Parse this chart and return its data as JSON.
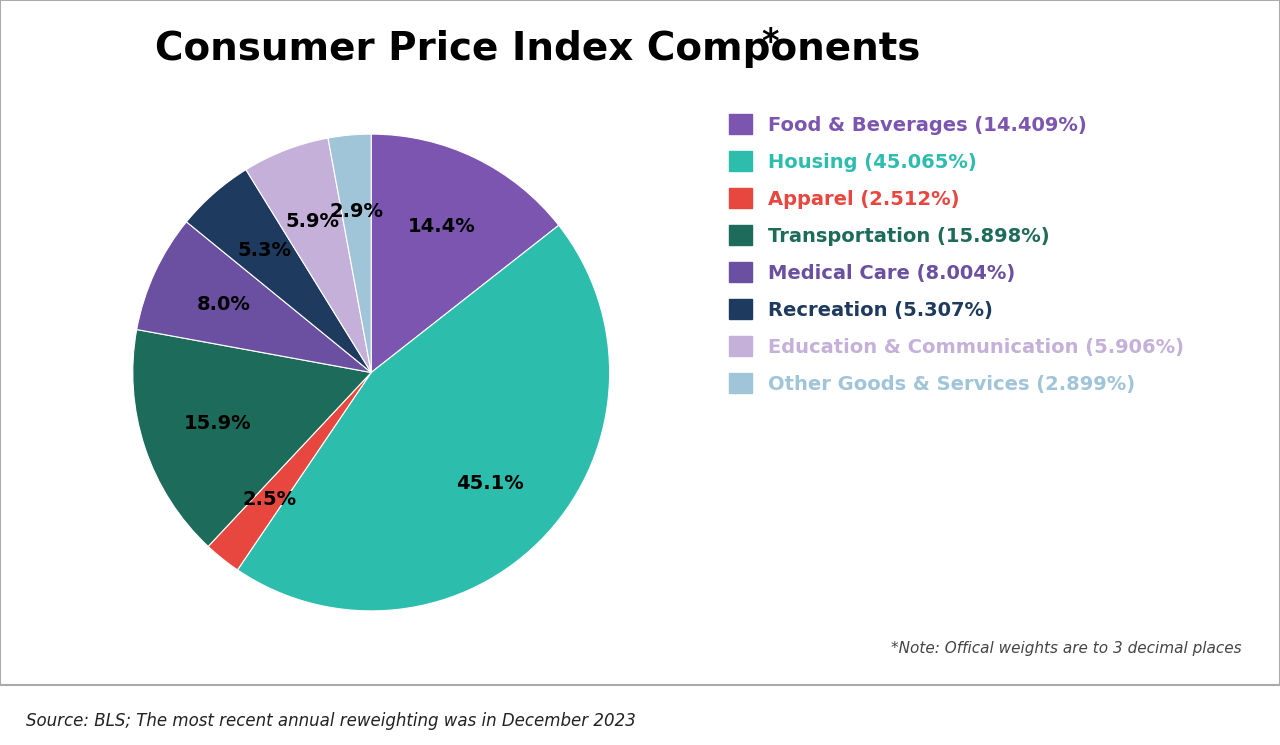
{
  "title": "Consumer Price Index Components",
  "title_star": "*",
  "labels": [
    "Food & Beverages",
    "Housing",
    "Apparel",
    "Transportation",
    "Medical Care",
    "Recreation",
    "Education & Communication",
    "Other Goods & Services"
  ],
  "values": [
    14.409,
    45.065,
    2.512,
    15.898,
    8.004,
    5.307,
    5.906,
    2.899
  ],
  "display_pcts": [
    "14.4%",
    "45.1%",
    "2.5%",
    "15.9%",
    "8.0%",
    "5.3%",
    "5.9%",
    "2.9%"
  ],
  "legend_labels": [
    "Food & Beverages (14.409%)",
    "Housing (45.065%)",
    "Apparel (2.512%)",
    "Transportation (15.898%)",
    "Medical Care (8.004%)",
    "Recreation (5.307%)",
    "Education & Communication (5.906%)",
    "Other Goods & Services (2.899%)"
  ],
  "colors": [
    "#7B55B0",
    "#2DBDAD",
    "#E8473F",
    "#1D6B5A",
    "#6B4FA0",
    "#1E3A5F",
    "#C4B0D8",
    "#A0C4D8"
  ],
  "legend_text_colors": [
    "#7B55B0",
    "#2DBDAD",
    "#E8473F",
    "#1D6B5A",
    "#6B4FA0",
    "#1E3A5F",
    "#C4B0D8",
    "#A0C4D8"
  ],
  "note_text": "*Note: Offical weights are to 3 decimal places",
  "source_text": "Source: BLS; The most recent annual reweighting was in December 2023",
  "background_color": "#FFFFFF",
  "title_fontsize": 28,
  "legend_fontsize": 14,
  "pct_fontsize": 14
}
